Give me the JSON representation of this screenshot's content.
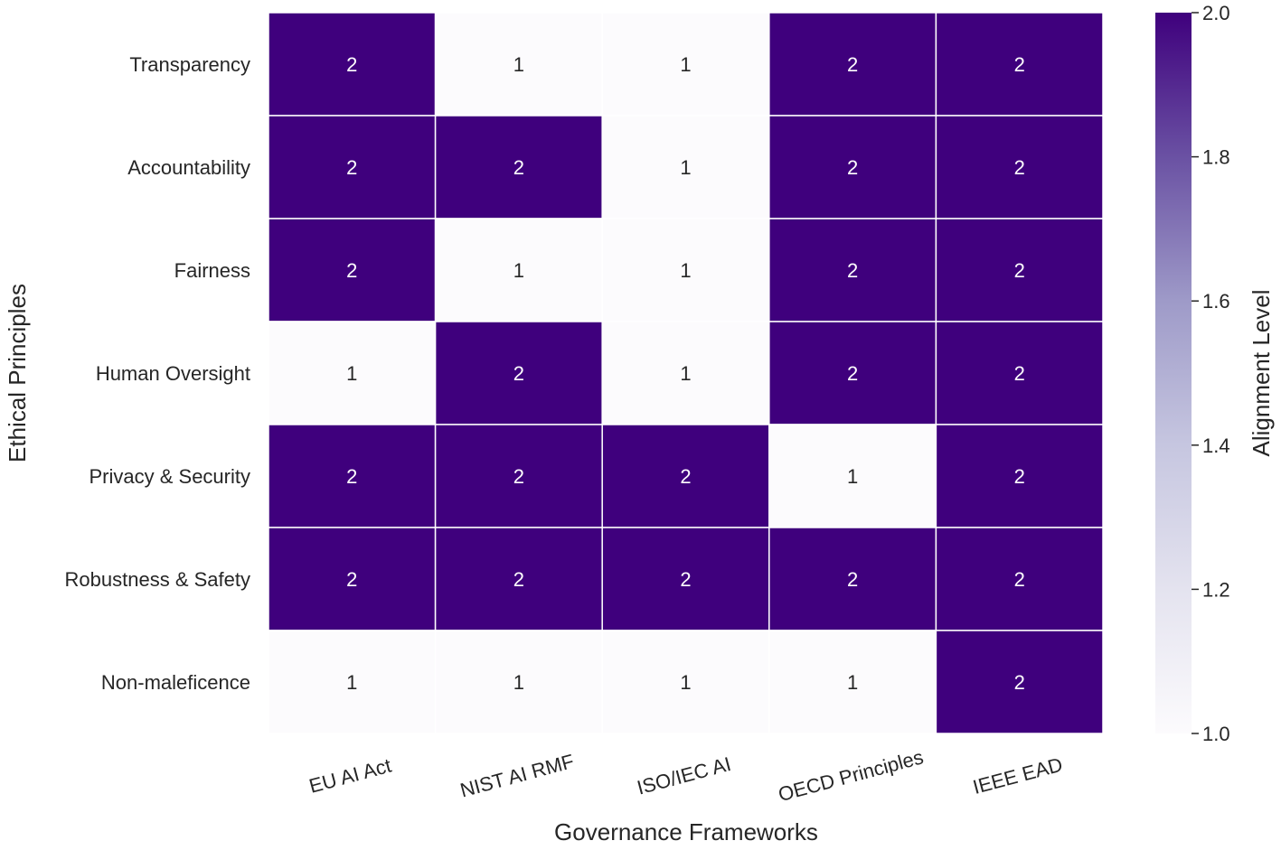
{
  "chart_data": {
    "type": "heatmap",
    "title": "",
    "xlabel": "Governance Frameworks",
    "ylabel": "Ethical Principles",
    "columns": [
      "EU AI Act",
      "NIST AI RMF",
      "ISO/IEC AI",
      "OECD Principles",
      "IEEE EAD"
    ],
    "rows": [
      "Transparency",
      "Accountability",
      "Fairness",
      "Human Oversight",
      "Privacy & Security",
      "Robustness & Safety",
      "Non-maleficence"
    ],
    "values": [
      [
        2,
        1,
        1,
        2,
        2
      ],
      [
        2,
        2,
        1,
        2,
        2
      ],
      [
        2,
        1,
        1,
        2,
        2
      ],
      [
        1,
        2,
        1,
        2,
        2
      ],
      [
        2,
        2,
        2,
        1,
        2
      ],
      [
        2,
        2,
        2,
        2,
        2
      ],
      [
        1,
        1,
        1,
        1,
        2
      ]
    ],
    "colorbar": {
      "label": "Alignment Level",
      "min": 1.0,
      "max": 2.0,
      "ticks": [
        "1.0",
        "1.2",
        "1.4",
        "1.6",
        "1.8",
        "2.0"
      ],
      "colormap": "Purples",
      "low_color": "#fcfbfd",
      "high_color": "#3f007d"
    },
    "annotations": true,
    "grid": false
  }
}
